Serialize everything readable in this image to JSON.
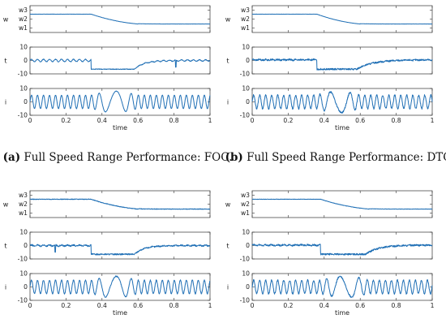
{
  "chart_data": [
    {
      "type": "line",
      "caption_label": "(a)",
      "caption_text": "Full Speed Range Performance: FOC.",
      "xlabel": "time",
      "x_ticks": [
        "0",
        "0.2",
        "0.4",
        "0.6",
        "0.8",
        "1"
      ],
      "xlim": [
        0,
        1
      ],
      "panels": [
        {
          "ylabel": "w",
          "ylim": [
            0.5,
            3.5
          ],
          "y_ticks": [
            {
              "v": 1,
              "t": "w1"
            },
            {
              "v": 2,
              "t": "w2"
            },
            {
              "v": 3,
              "t": "w3"
            }
          ],
          "series": [
            {
              "kind": "speed",
              "high": 2.55,
              "low": 1.45,
              "ramp": [
                0.34,
                0.6
              ],
              "noise": 0.01
            }
          ]
        },
        {
          "ylabel": "t",
          "ylim": [
            -10,
            10
          ],
          "y_ticks": [
            {
              "v": -10,
              "t": "-10"
            },
            {
              "v": 0,
              "t": "0"
            },
            {
              "v": 10,
              "t": "10"
            }
          ],
          "series": [
            {
              "kind": "torque",
              "base": 0,
              "step": -6.5,
              "ramp": [
                0.34,
                0.58
              ],
              "recover": 0.15,
              "ripple": 0.9,
              "noise": 0.25,
              "spike": 0.81
            }
          ]
        },
        {
          "ylabel": "i",
          "ylim": [
            -10,
            10
          ],
          "y_ticks": [
            {
              "v": -10,
              "t": "-10"
            },
            {
              "v": 0,
              "t": "0"
            },
            {
              "v": 10,
              "t": "10"
            }
          ],
          "series": [
            {
              "kind": "current",
              "amp": 5,
              "amp_low": 8,
              "freq_hi": 30,
              "freq_lo": 7,
              "ramp": [
                0.34,
                0.6
              ],
              "noise": 0.15
            }
          ]
        }
      ]
    },
    {
      "type": "line",
      "caption_label": "(b)",
      "caption_text": "Full Speed Range Performance: DTC.",
      "xlabel": "time",
      "x_ticks": [
        "0",
        "0.2",
        "0.4",
        "0.6",
        "0.8",
        "1"
      ],
      "xlim": [
        0,
        1
      ],
      "panels": [
        {
          "ylabel": "w",
          "ylim": [
            0.5,
            3.5
          ],
          "y_ticks": [
            {
              "v": 1,
              "t": "w1"
            },
            {
              "v": 2,
              "t": "w2"
            },
            {
              "v": 3,
              "t": "w3"
            }
          ],
          "series": [
            {
              "kind": "speed",
              "high": 2.55,
              "low": 1.45,
              "ramp": [
                0.36,
                0.6
              ],
              "noise": 0.01
            }
          ]
        },
        {
          "ylabel": "t",
          "ylim": [
            -10,
            10
          ],
          "y_ticks": [
            {
              "v": -10,
              "t": "-10"
            },
            {
              "v": 0,
              "t": "0"
            },
            {
              "v": 10,
              "t": "10"
            }
          ],
          "series": [
            {
              "kind": "torque",
              "base": 0.5,
              "step": -6.5,
              "ramp": [
                0.36,
                0.58
              ],
              "recover": 0.25,
              "ripple": 0.3,
              "noise": 0.6,
              "spike": -1
            }
          ]
        },
        {
          "ylabel": "i",
          "ylim": [
            -10,
            10
          ],
          "y_ticks": [
            {
              "v": -10,
              "t": "-10"
            },
            {
              "v": 0,
              "t": "0"
            },
            {
              "v": 10,
              "t": "10"
            }
          ],
          "series": [
            {
              "kind": "current",
              "amp": 5,
              "amp_low": 8,
              "freq_hi": 30,
              "freq_lo": 7,
              "ramp": [
                0.36,
                0.6
              ],
              "noise": 0.6
            }
          ]
        }
      ]
    },
    {
      "type": "line",
      "caption_label": "",
      "caption_text": "",
      "xlabel": "time",
      "x_ticks": [
        "0",
        "0.2",
        "0.4",
        "0.6",
        "0.8",
        "1"
      ],
      "xlim": [
        0,
        1
      ],
      "panels": [
        {
          "ylabel": "w",
          "ylim": [
            0.5,
            3.5
          ],
          "y_ticks": [
            {
              "v": 1,
              "t": "w1"
            },
            {
              "v": 2,
              "t": "w2"
            },
            {
              "v": 3,
              "t": "w3"
            }
          ],
          "series": [
            {
              "kind": "speed",
              "high": 2.55,
              "low": 1.45,
              "ramp": [
                0.34,
                0.6
              ],
              "noise": 0.035
            }
          ]
        },
        {
          "ylabel": "t",
          "ylim": [
            -10,
            10
          ],
          "y_ticks": [
            {
              "v": -10,
              "t": "-10"
            },
            {
              "v": 0,
              "t": "0"
            },
            {
              "v": 10,
              "t": "10"
            }
          ],
          "series": [
            {
              "kind": "torque",
              "base": 0,
              "step": -6.5,
              "ramp": [
                0.34,
                0.58
              ],
              "recover": 0.15,
              "ripple": 0.4,
              "noise": 0.5,
              "spike": 0.14
            }
          ]
        },
        {
          "ylabel": "i",
          "ylim": [
            -10,
            10
          ],
          "y_ticks": [
            {
              "v": -10,
              "t": "-10"
            },
            {
              "v": 0,
              "t": "0"
            },
            {
              "v": 10,
              "t": "10"
            }
          ],
          "series": [
            {
              "kind": "current",
              "amp": 5,
              "amp_low": 8,
              "freq_hi": 30,
              "freq_lo": 7,
              "ramp": [
                0.34,
                0.6
              ],
              "noise": 0.4
            }
          ]
        }
      ]
    },
    {
      "type": "line",
      "caption_label": "",
      "caption_text": "",
      "xlabel": "time",
      "x_ticks": [
        "0",
        "0.2",
        "0.4",
        "0.6",
        "0.8",
        "1"
      ],
      "xlim": [
        0,
        1
      ],
      "panels": [
        {
          "ylabel": "w",
          "ylim": [
            0.5,
            3.5
          ],
          "y_ticks": [
            {
              "v": 1,
              "t": "w1"
            },
            {
              "v": 2,
              "t": "w2"
            },
            {
              "v": 3,
              "t": "w3"
            }
          ],
          "series": [
            {
              "kind": "speed",
              "high": 2.55,
              "low": 1.45,
              "ramp": [
                0.38,
                0.65
              ],
              "noise": 0.02
            }
          ]
        },
        {
          "ylabel": "t",
          "ylim": [
            -10,
            10
          ],
          "y_ticks": [
            {
              "v": -10,
              "t": "-10"
            },
            {
              "v": 0,
              "t": "0"
            },
            {
              "v": 10,
              "t": "10"
            }
          ],
          "series": [
            {
              "kind": "torque",
              "base": 0.3,
              "step": -6.5,
              "ramp": [
                0.38,
                0.63
              ],
              "recover": 0.2,
              "ripple": 0.3,
              "noise": 0.6,
              "spike": -1
            }
          ]
        },
        {
          "ylabel": "i",
          "ylim": [
            -10,
            10
          ],
          "y_ticks": [
            {
              "v": -10,
              "t": "-10"
            },
            {
              "v": 0,
              "t": "0"
            },
            {
              "v": 10,
              "t": "10"
            }
          ],
          "series": [
            {
              "kind": "current",
              "amp": 5,
              "amp_low": 8,
              "freq_hi": 30,
              "freq_lo": 7,
              "ramp": [
                0.38,
                0.65
              ],
              "noise": 0.6
            }
          ]
        }
      ]
    }
  ]
}
